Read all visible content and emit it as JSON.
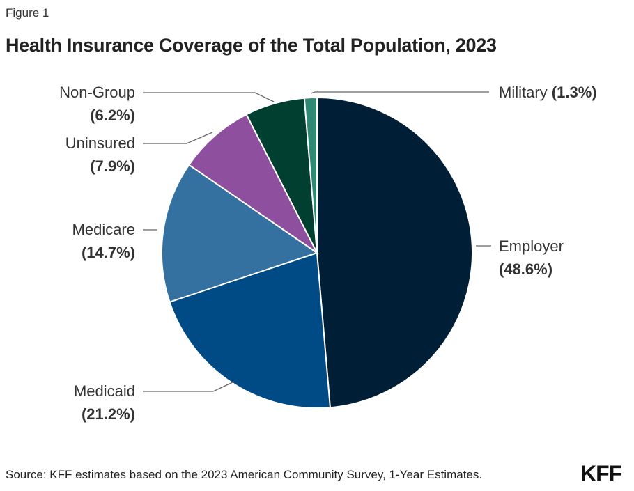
{
  "figure_label": "Figure 1",
  "title": "Health Insurance Coverage of the Total Population, 2023",
  "source": "Source: KFF estimates based on the 2023 American Community Survey, 1-Year Estimates.",
  "logo": "KFF",
  "chart_data": {
    "type": "pie",
    "title": "Health Insurance Coverage of the Total Population, 2023",
    "start": "12 o'clock, clockwise",
    "slices": [
      {
        "label": "Employer",
        "value": 48.6,
        "value_label": "(48.6%)",
        "color": "#001f36"
      },
      {
        "label": "Medicaid",
        "value": 21.2,
        "value_label": "(21.2%)",
        "color": "#004a85"
      },
      {
        "label": "Medicare",
        "value": 14.7,
        "value_label": "(14.7%)",
        "color": "#3471a1"
      },
      {
        "label": "Uninsured",
        "value": 7.9,
        "value_label": "(7.9%)",
        "color": "#8e4f9e"
      },
      {
        "label": "Non-Group",
        "value": 6.2,
        "value_label": "(6.2%)",
        "color": "#013f31"
      },
      {
        "label": "Military",
        "value": 1.3,
        "value_label": "(1.3%)",
        "color": "#2f8872"
      }
    ]
  }
}
